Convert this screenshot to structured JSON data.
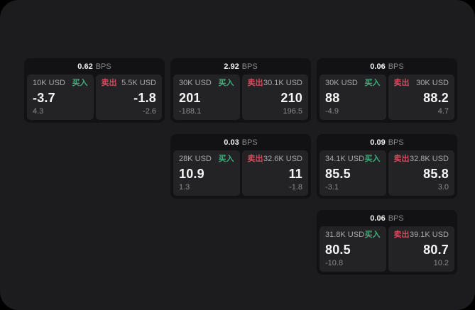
{
  "labels": {
    "bps_unit": "BPS",
    "buy": "买入",
    "sell": "卖出"
  },
  "colors": {
    "buy_accent": "#3dae7c",
    "sell_accent": "#d44a5e",
    "panel_background": "#1c1c1e",
    "card_background": "#121214",
    "side_background": "#232325",
    "price_text": "#f5f5f5",
    "muted_text": "#8a8a8c"
  },
  "cards": [
    {
      "bps": "0.62",
      "buy": {
        "size": "10K USD",
        "price": "-3.7",
        "delta": "4.3"
      },
      "sell": {
        "size": "5.5K USD",
        "price": "-1.8",
        "delta": "-2.6"
      }
    },
    {
      "bps": "2.92",
      "buy": {
        "size": "30K USD",
        "price": "201",
        "delta": "-188.1"
      },
      "sell": {
        "size": "30.1K USD",
        "price": "210",
        "delta": "196.5"
      }
    },
    {
      "bps": "0.06",
      "buy": {
        "size": "30K USD",
        "price": "88",
        "delta": "-4.9"
      },
      "sell": {
        "size": "30K USD",
        "price": "88.2",
        "delta": "4.7"
      }
    },
    {
      "bps": "0.03",
      "buy": {
        "size": "28K USD",
        "price": "10.9",
        "delta": "1.3"
      },
      "sell": {
        "size": "32.6K USD",
        "price": "11",
        "delta": "-1.8"
      }
    },
    {
      "bps": "0.09",
      "buy": {
        "size": "34.1K USD",
        "price": "85.5",
        "delta": "-3.1"
      },
      "sell": {
        "size": "32.8K USD",
        "price": "85.8",
        "delta": "3.0"
      }
    },
    {
      "bps": "0.06",
      "buy": {
        "size": "31.8K USD",
        "price": "80.5",
        "delta": "-10.8"
      },
      "sell": {
        "size": "39.1K USD",
        "price": "80.7",
        "delta": "10.2"
      }
    }
  ]
}
